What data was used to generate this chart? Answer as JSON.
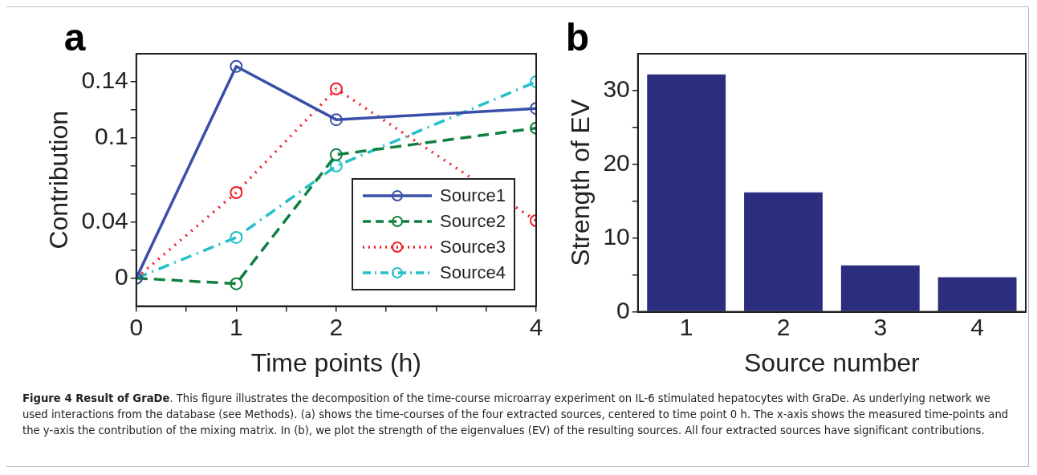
{
  "chart_data": [
    {
      "type": "line",
      "title": "a",
      "xlabel": "Time points (h)",
      "ylabel": "Contribution",
      "x": [
        0,
        1,
        2,
        4
      ],
      "series": [
        {
          "name": "Source1",
          "color": "#3a50a8",
          "line_style": "solid",
          "values": [
            0,
            0.151,
            0.113,
            0.121
          ]
        },
        {
          "name": "Source2",
          "color": "#0f8040",
          "line_style": "dashed",
          "values": [
            0,
            -0.004,
            0.088,
            0.107
          ]
        },
        {
          "name": "Source3",
          "color": "#ee1c24",
          "line_style": "dotted",
          "values": [
            0,
            0.061,
            0.135,
            0.041
          ]
        },
        {
          "name": "Source4",
          "color": "#22c0c8",
          "line_style": "dashdot",
          "values": [
            0,
            0.029,
            0.08,
            0.14
          ]
        }
      ],
      "xlim": [
        0,
        4
      ],
      "xticks": [
        0,
        {
          "value": 0.5,
          "label": null
        },
        1,
        {
          "value": 1.5,
          "label": null
        },
        2,
        {
          "value": 2.5,
          "label": null
        },
        {
          "value": 3,
          "label": null
        },
        {
          "value": 3.5,
          "label": null
        },
        4
      ],
      "ylim": [
        -0.02,
        0.16
      ],
      "yticks": [
        0,
        {
          "value": 0.02,
          "label": null
        },
        0.04,
        {
          "value": 0.06,
          "label": null
        },
        {
          "value": 0.08,
          "label": null
        },
        0.1,
        {
          "value": 0.12,
          "label": null
        },
        0.14
      ],
      "marker": "circle",
      "grid": false,
      "legend": "bottom right",
      "annotations": [
        "Figure 4 Result of GraDe",
        ". This figure illustrates the decomposition of the time-course microarray experiment on IL-6 stimulated hepatocytes with GraDe. As underlying network we used interactions from the database (see Methods). (a) shows the time-courses of the four extracted sources, centered to time point 0 h. The x-axis shows the measured time-points and the y-axis the contribution of the mixing matrix. In (b), we plot the strength of the eigenvalues (EV) of the resulting sources. All four extracted sources have significant contributions."
      ]
    },
    {
      "type": "bar",
      "title": "b",
      "xlabel": "Source number",
      "ylabel": "Strength of EV",
      "categories": [
        "1",
        "2",
        "3",
        "4"
      ],
      "values": [
        32.2,
        16.2,
        6.3,
        4.7
      ],
      "color": "#2b2e7e",
      "ylim": [
        0,
        35
      ],
      "yticks": [
        0,
        {
          "value": 5,
          "label": null
        },
        10,
        {
          "value": 15,
          "label": null
        },
        20,
        {
          "value": 25,
          "label": null
        },
        30
      ],
      "grid": false,
      "legend": false
    }
  ]
}
